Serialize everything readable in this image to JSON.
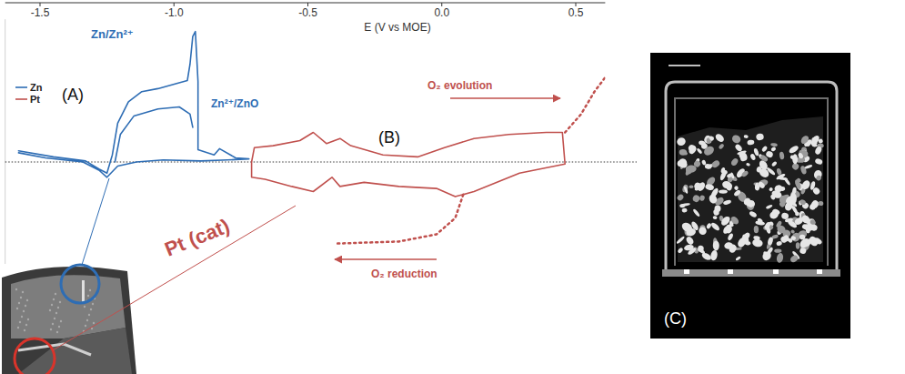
{
  "chart_data": {
    "type": "line",
    "x_label": "E (V vs MOE)",
    "xlim": [
      -1.63,
      0.61
    ],
    "xticks": [
      -1.5,
      {
        "value": -1,
        "label": "-1.0"
      },
      -0.5,
      {
        "value": 0,
        "label": "0.0"
      },
      0.5
    ],
    "ylim": [
      -1,
      1.4
    ],
    "yticks": [
      0
    ],
    "grid": "y",
    "tick_labels": "x",
    "legend": "left",
    "series": [
      {
        "name": "Zn",
        "color": "#2e6db4",
        "line_style": "solid",
        "x": [
          -1.58,
          -1.45,
          -1.33,
          -1.28,
          -1.25,
          -1.23,
          -1.21,
          -1.17,
          -1.12,
          -1.06,
          -0.99,
          -0.95,
          -0.94,
          -0.93,
          -0.92,
          -0.91,
          -0.91,
          -0.85,
          -0.83,
          -0.77,
          -0.72,
          -0.8,
          -0.9,
          -1.04,
          -1.14,
          -1.21,
          -1.25,
          -1.28,
          -1.34,
          -1.48,
          -1.58,
          null,
          -1.22,
          -1.2,
          -1.15,
          -1.06,
          -0.98,
          -0.94,
          -0.93
        ],
        "values": [
          0.11,
          0.05,
          0.01,
          -0.07,
          -0.11,
          0.07,
          0.38,
          0.59,
          0.69,
          0.72,
          0.77,
          0.8,
          0.96,
          1.23,
          1.28,
          0.79,
          0.12,
          0.07,
          0.13,
          0.04,
          0.03,
          0.02,
          0.01,
          0.02,
          0,
          -0.04,
          -0.15,
          -0.08,
          0,
          0.04,
          0.09,
          null,
          0,
          0.27,
          0.45,
          0.52,
          0.54,
          0.47,
          0.34
        ]
      },
      {
        "name": "Pt",
        "color": "#c0504d",
        "line_style": "solid",
        "x": [
          -0.71,
          -0.7,
          -0.63,
          -0.53,
          -0.48,
          -0.43,
          -0.38,
          -0.34,
          -0.22,
          -0.09,
          0.01,
          0.12,
          0.25,
          0.39,
          0.45,
          0.46,
          0.29,
          0.12,
          0.05,
          -0.02,
          -0.16,
          -0.29,
          -0.38,
          -0.41,
          -0.48,
          -0.56,
          -0.66,
          -0.71,
          -0.71
        ],
        "values": [
          0,
          0.14,
          0.16,
          0.21,
          0.29,
          0.18,
          0.23,
          0.16,
          0.07,
          0.05,
          0.14,
          0.23,
          0.27,
          0.29,
          0.29,
          -0.02,
          -0.11,
          -0.29,
          -0.34,
          -0.26,
          -0.24,
          -0.2,
          -0.24,
          -0.15,
          -0.29,
          -0.24,
          -0.17,
          -0.15,
          0
        ]
      },
      {
        "color": "#c0504d",
        "line_style": "dotted",
        "x": [
          0.46,
          0.52,
          0.57,
          0.61
        ],
        "values": [
          0.29,
          0.47,
          0.69,
          0.83
        ]
      },
      {
        "color": "#c0504d",
        "line_style": "dotted",
        "x": [
          0.08,
          0.05,
          -0.02,
          -0.16,
          -0.39
        ],
        "values": [
          -0.32,
          -0.55,
          -0.71,
          -0.78,
          -0.8
        ]
      }
    ],
    "annotations": [
      "Zn/Zn²⁺",
      "Zn²⁺/ZnO",
      "(A)",
      "(B)",
      "O₂ evolution",
      "O₂ reduction",
      "Pt (cat)"
    ]
  },
  "ct_image": {
    "label": "(C)"
  }
}
